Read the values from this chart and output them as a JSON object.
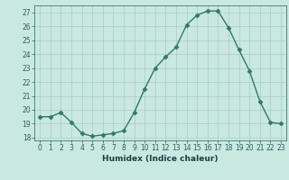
{
  "x": [
    0,
    1,
    2,
    3,
    4,
    5,
    6,
    7,
    8,
    9,
    10,
    11,
    12,
    13,
    14,
    15,
    16,
    17,
    18,
    19,
    20,
    21,
    22,
    23
  ],
  "y": [
    19.5,
    19.5,
    19.8,
    19.1,
    18.3,
    18.1,
    18.2,
    18.3,
    18.5,
    19.8,
    21.5,
    23.0,
    23.8,
    24.5,
    26.1,
    26.8,
    27.1,
    27.1,
    25.9,
    24.3,
    22.8,
    20.6,
    19.1,
    19.0
  ],
  "xlabel": "Humidex (Indice chaleur)",
  "ylim": [
    17.8,
    27.5
  ],
  "xlim": [
    -0.5,
    23.5
  ],
  "yticks": [
    18,
    19,
    20,
    21,
    22,
    23,
    24,
    25,
    26,
    27
  ],
  "xticks": [
    0,
    1,
    2,
    3,
    4,
    5,
    6,
    7,
    8,
    9,
    10,
    11,
    12,
    13,
    14,
    15,
    16,
    17,
    18,
    19,
    20,
    21,
    22,
    23
  ],
  "line_color": "#2d7a6a",
  "marker_color": "#2d7a6a",
  "bg_color": "#c8e8e0",
  "grid_color": "#aaccc4",
  "tick_label_color": "#2d6060",
  "xlabel_color": "#1a4040",
  "fig_bg": "#c8e8e0",
  "xlabel_fontsize": 6.5,
  "tick_fontsize": 5.5
}
